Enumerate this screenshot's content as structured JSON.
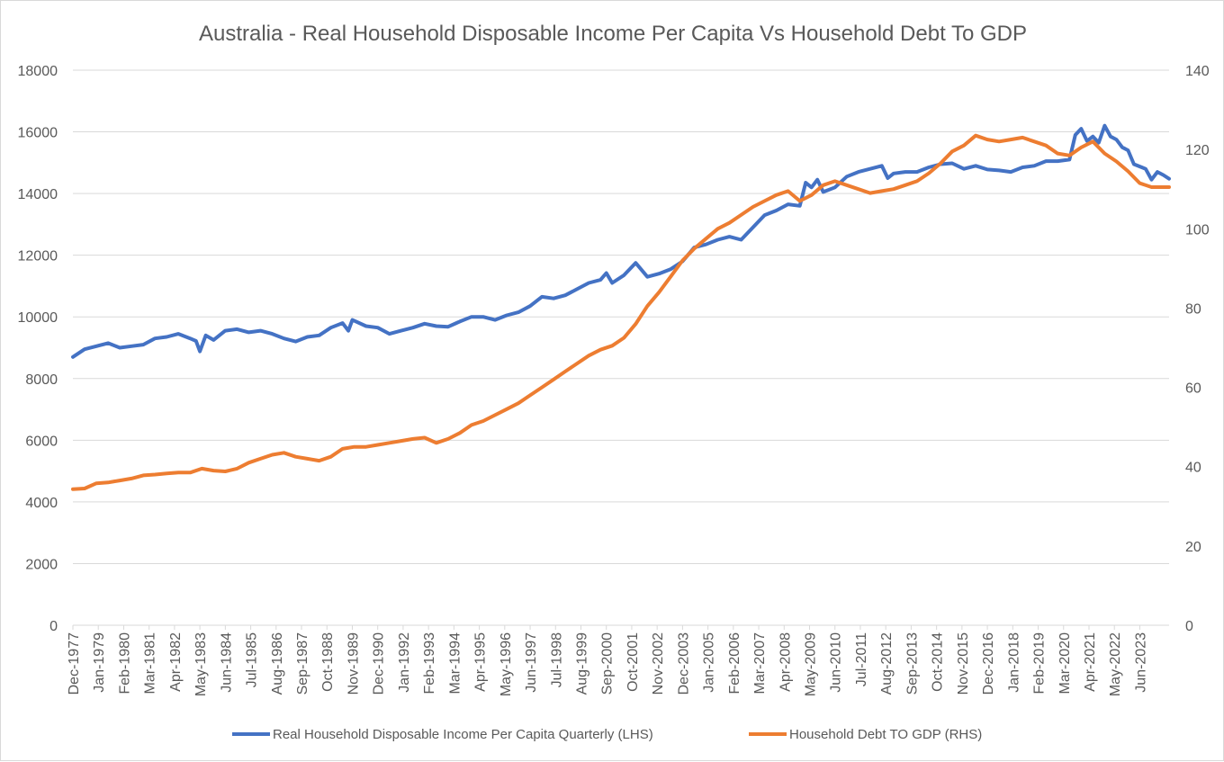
{
  "chart_data": {
    "type": "line",
    "title": "Australia - Real Household Disposable Income Per Capita Vs Household Debt To GDP",
    "x_tick_labels": [
      "Dec-1977",
      "Jan-1979",
      "Feb-1980",
      "Mar-1981",
      "Apr-1982",
      "May-1983",
      "Jun-1984",
      "Jul-1985",
      "Aug-1986",
      "Sep-1987",
      "Oct-1988",
      "Nov-1989",
      "Dec-1990",
      "Jan-1992",
      "Feb-1993",
      "Mar-1994",
      "Apr-1995",
      "May-1996",
      "Jun-1997",
      "Jul-1998",
      "Aug-1999",
      "Sep-2000",
      "Oct-2001",
      "Nov-2002",
      "Dec-2003",
      "Jan-2005",
      "Feb-2006",
      "Mar-2007",
      "Apr-2008",
      "May-2009",
      "Jun-2010",
      "Jul-2011",
      "Aug-2012",
      "Sep-2013",
      "Oct-2014",
      "Nov-2015",
      "Dec-2016",
      "Jan-2018",
      "Feb-2019",
      "Mar-2020",
      "Apr-2021",
      "May-2022",
      "Jun-2023"
    ],
    "x_range": [
      "Dec-1977",
      "Sep-2024"
    ],
    "y_left": {
      "range": [
        0,
        18000
      ],
      "ticks": [
        0,
        2000,
        4000,
        6000,
        8000,
        10000,
        12000,
        14000,
        16000,
        18000
      ]
    },
    "y_right": {
      "range": [
        0,
        140
      ],
      "ticks": [
        0,
        20,
        40,
        60,
        80,
        100,
        120,
        140
      ]
    },
    "grid": "horizontal",
    "legend_position": "bottom",
    "colors": {
      "income": "#4472c4",
      "debt": "#ed7d31",
      "grid": "#d9d9d9",
      "text": "#595959"
    },
    "series": [
      {
        "name": "Real Household Disposable Income Per Capita Quarterly (LHS)",
        "axis": "left",
        "points": [
          [
            "Dec-1977",
            8700
          ],
          [
            "Jun-1978",
            8950
          ],
          [
            "Dec-1978",
            9050
          ],
          [
            "Jun-1979",
            9150
          ],
          [
            "Dec-1979",
            9000
          ],
          [
            "Jun-1980",
            9050
          ],
          [
            "Dec-1980",
            9100
          ],
          [
            "Jun-1981",
            9300
          ],
          [
            "Dec-1981",
            9350
          ],
          [
            "Jun-1982",
            9450
          ],
          [
            "Dec-1982",
            9300
          ],
          [
            "Mar-1983",
            9220
          ],
          [
            "May-1983",
            8880
          ],
          [
            "Aug-1983",
            9400
          ],
          [
            "Dec-1983",
            9250
          ],
          [
            "Jun-1984",
            9550
          ],
          [
            "Dec-1984",
            9600
          ],
          [
            "Jun-1985",
            9500
          ],
          [
            "Dec-1985",
            9550
          ],
          [
            "Jun-1986",
            9450
          ],
          [
            "Dec-1986",
            9300
          ],
          [
            "Jun-1987",
            9200
          ],
          [
            "Dec-1987",
            9350
          ],
          [
            "Jun-1988",
            9400
          ],
          [
            "Dec-1988",
            9650
          ],
          [
            "Jun-1989",
            9800
          ],
          [
            "Sep-1989",
            9550
          ],
          [
            "Nov-1989",
            9900
          ],
          [
            "Jun-1990",
            9700
          ],
          [
            "Dec-1990",
            9650
          ],
          [
            "Jun-1991",
            9450
          ],
          [
            "Dec-1991",
            9550
          ],
          [
            "Jun-1992",
            9650
          ],
          [
            "Dec-1992",
            9780
          ],
          [
            "Jun-1993",
            9700
          ],
          [
            "Dec-1993",
            9680
          ],
          [
            "Jun-1994",
            9850
          ],
          [
            "Dec-1994",
            10000
          ],
          [
            "Jun-1995",
            10000
          ],
          [
            "Dec-1995",
            9900
          ],
          [
            "Jun-1996",
            10050
          ],
          [
            "Dec-1996",
            10150
          ],
          [
            "Jun-1997",
            10350
          ],
          [
            "Dec-1997",
            10650
          ],
          [
            "Jun-1998",
            10600
          ],
          [
            "Dec-1998",
            10700
          ],
          [
            "Jun-1999",
            10900
          ],
          [
            "Dec-1999",
            11100
          ],
          [
            "Jun-2000",
            11200
          ],
          [
            "Sep-2000",
            11420
          ],
          [
            "Dec-2000",
            11100
          ],
          [
            "Jun-2001",
            11350
          ],
          [
            "Dec-2001",
            11750
          ],
          [
            "Jun-2002",
            11300
          ],
          [
            "Dec-2002",
            11400
          ],
          [
            "Jun-2003",
            11550
          ],
          [
            "Dec-2003",
            11800
          ],
          [
            "Jun-2004",
            12250
          ],
          [
            "Dec-2004",
            12350
          ],
          [
            "Jun-2005",
            12500
          ],
          [
            "Dec-2005",
            12600
          ],
          [
            "Jun-2006",
            12500
          ],
          [
            "Dec-2006",
            12900
          ],
          [
            "Jun-2007",
            13300
          ],
          [
            "Dec-2007",
            13450
          ],
          [
            "Jun-2008",
            13650
          ],
          [
            "Dec-2008",
            13600
          ],
          [
            "Mar-2009",
            14350
          ],
          [
            "Jun-2009",
            14200
          ],
          [
            "Sep-2009",
            14450
          ],
          [
            "Dec-2009",
            14050
          ],
          [
            "Jun-2010",
            14200
          ],
          [
            "Dec-2010",
            14550
          ],
          [
            "Jun-2011",
            14700
          ],
          [
            "Dec-2011",
            14800
          ],
          [
            "Jun-2012",
            14900
          ],
          [
            "Sep-2012",
            14500
          ],
          [
            "Dec-2012",
            14650
          ],
          [
            "Jun-2013",
            14700
          ],
          [
            "Dec-2013",
            14700
          ],
          [
            "Jun-2014",
            14850
          ],
          [
            "Dec-2014",
            14950
          ],
          [
            "Jun-2015",
            14980
          ],
          [
            "Dec-2015",
            14800
          ],
          [
            "Jun-2016",
            14900
          ],
          [
            "Dec-2016",
            14780
          ],
          [
            "Jun-2017",
            14750
          ],
          [
            "Dec-2017",
            14700
          ],
          [
            "Jun-2018",
            14850
          ],
          [
            "Dec-2018",
            14900
          ],
          [
            "Jun-2019",
            15050
          ],
          [
            "Dec-2019",
            15050
          ],
          [
            "Jun-2020",
            15100
          ],
          [
            "Sep-2020",
            15900
          ],
          [
            "Dec-2020",
            16100
          ],
          [
            "Mar-2021",
            15700
          ],
          [
            "Jun-2021",
            15850
          ],
          [
            "Sep-2021",
            15650
          ],
          [
            "Dec-2021",
            16200
          ],
          [
            "Mar-2022",
            15850
          ],
          [
            "Jun-2022",
            15750
          ],
          [
            "Sep-2022",
            15500
          ],
          [
            "Dec-2022",
            15400
          ],
          [
            "Mar-2023",
            14950
          ],
          [
            "Sep-2023",
            14800
          ],
          [
            "Dec-2023",
            14450
          ],
          [
            "Mar-2024",
            14700
          ],
          [
            "Jun-2024",
            14600
          ],
          [
            "Sep-2024",
            14480
          ]
        ]
      },
      {
        "name": "Household Debt TO GDP (RHS)",
        "axis": "right",
        "points": [
          [
            "Dec-1977",
            34.3
          ],
          [
            "Jun-1978",
            34.5
          ],
          [
            "Dec-1978",
            35.8
          ],
          [
            "Jun-1979",
            36.0
          ],
          [
            "Dec-1979",
            36.5
          ],
          [
            "Jun-1980",
            37.0
          ],
          [
            "Dec-1980",
            37.8
          ],
          [
            "Jun-1981",
            38.0
          ],
          [
            "Dec-1981",
            38.3
          ],
          [
            "Jun-1982",
            38.5
          ],
          [
            "Dec-1982",
            38.5
          ],
          [
            "Jun-1983",
            39.5
          ],
          [
            "Dec-1983",
            39.0
          ],
          [
            "Jun-1984",
            38.8
          ],
          [
            "Dec-1984",
            39.5
          ],
          [
            "Jun-1985",
            41.0
          ],
          [
            "Dec-1985",
            42.0
          ],
          [
            "Jun-1986",
            43.0
          ],
          [
            "Dec-1986",
            43.5
          ],
          [
            "Jun-1987",
            42.5
          ],
          [
            "Dec-1987",
            42.0
          ],
          [
            "Jun-1988",
            41.5
          ],
          [
            "Dec-1988",
            42.5
          ],
          [
            "Jun-1989",
            44.5
          ],
          [
            "Dec-1989",
            45.0
          ],
          [
            "Jun-1990",
            45.0
          ],
          [
            "Dec-1990",
            45.5
          ],
          [
            "Jun-1991",
            46.0
          ],
          [
            "Dec-1991",
            46.5
          ],
          [
            "Jun-1992",
            47.0
          ],
          [
            "Dec-1992",
            47.3
          ],
          [
            "Jun-1993",
            46.0
          ],
          [
            "Dec-1993",
            47.0
          ],
          [
            "Jun-1994",
            48.5
          ],
          [
            "Dec-1994",
            50.5
          ],
          [
            "Jun-1995",
            51.5
          ],
          [
            "Dec-1995",
            53.0
          ],
          [
            "Jun-1996",
            54.5
          ],
          [
            "Dec-1996",
            56.0
          ],
          [
            "Jun-1997",
            58.0
          ],
          [
            "Dec-1997",
            60.0
          ],
          [
            "Jun-1998",
            62.0
          ],
          [
            "Dec-1998",
            64.0
          ],
          [
            "Jun-1999",
            66.0
          ],
          [
            "Dec-1999",
            68.0
          ],
          [
            "Jun-2000",
            69.5
          ],
          [
            "Dec-2000",
            70.5
          ],
          [
            "Jun-2001",
            72.5
          ],
          [
            "Dec-2001",
            76.0
          ],
          [
            "Jun-2002",
            80.5
          ],
          [
            "Dec-2002",
            84.0
          ],
          [
            "Jun-2003",
            88.0
          ],
          [
            "Dec-2003",
            92.0
          ],
          [
            "Jun-2004",
            95.0
          ],
          [
            "Dec-2004",
            97.5
          ],
          [
            "Jun-2005",
            100.0
          ],
          [
            "Dec-2005",
            101.5
          ],
          [
            "Jun-2006",
            103.5
          ],
          [
            "Dec-2006",
            105.5
          ],
          [
            "Jun-2007",
            107.0
          ],
          [
            "Dec-2007",
            108.5
          ],
          [
            "Jun-2008",
            109.5
          ],
          [
            "Dec-2008",
            107.0
          ],
          [
            "Jun-2009",
            108.5
          ],
          [
            "Dec-2009",
            111.0
          ],
          [
            "Jun-2010",
            112.0
          ],
          [
            "Dec-2010",
            111.0
          ],
          [
            "Jun-2011",
            110.0
          ],
          [
            "Dec-2011",
            109.0
          ],
          [
            "Jun-2012",
            109.5
          ],
          [
            "Dec-2012",
            110.0
          ],
          [
            "Jun-2013",
            111.0
          ],
          [
            "Dec-2013",
            112.0
          ],
          [
            "Jun-2014",
            114.0
          ],
          [
            "Dec-2014",
            116.5
          ],
          [
            "Jun-2015",
            119.5
          ],
          [
            "Dec-2015",
            121.0
          ],
          [
            "Jun-2016",
            123.5
          ],
          [
            "Dec-2016",
            122.5
          ],
          [
            "Jun-2017",
            122.0
          ],
          [
            "Dec-2017",
            122.5
          ],
          [
            "Jun-2018",
            123.0
          ],
          [
            "Dec-2018",
            122.0
          ],
          [
            "Jun-2019",
            121.0
          ],
          [
            "Dec-2019",
            119.0
          ],
          [
            "Jun-2020",
            118.5
          ],
          [
            "Dec-2020",
            120.5
          ],
          [
            "Jun-2021",
            122.0
          ],
          [
            "Dec-2021",
            119.0
          ],
          [
            "Jun-2022",
            117.0
          ],
          [
            "Dec-2022",
            114.5
          ],
          [
            "Jun-2023",
            111.5
          ],
          [
            "Dec-2023",
            110.5
          ],
          [
            "Jun-2024",
            110.5
          ],
          [
            "Sep-2024",
            110.5
          ]
        ]
      }
    ]
  }
}
